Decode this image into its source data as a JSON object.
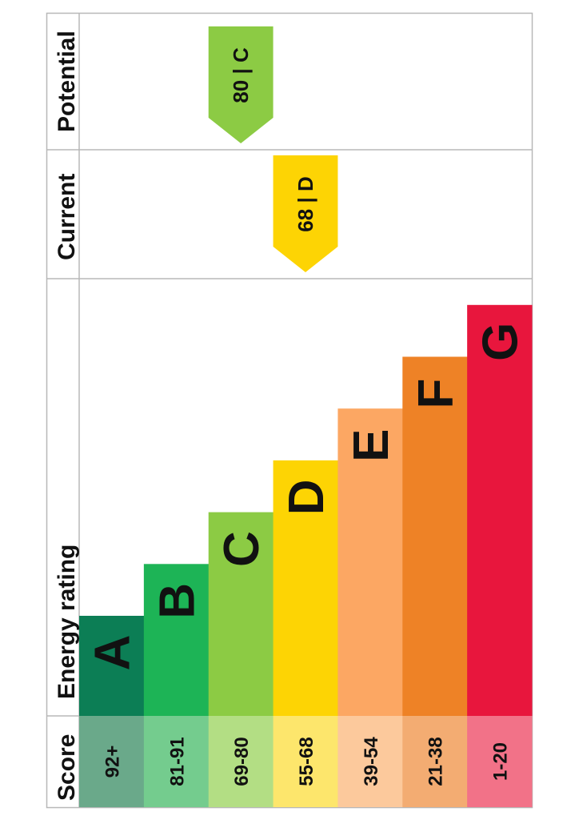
{
  "chart_data": {
    "type": "bar",
    "title": "",
    "headers": {
      "score": "Score",
      "energy_rating": "Energy rating",
      "current": "Current",
      "potential": "Potential"
    },
    "bands": [
      {
        "letter": "A",
        "score": "92+",
        "color": "#0c7e55",
        "light": "#6aa98a"
      },
      {
        "letter": "B",
        "score": "81-91",
        "color": "#1db456",
        "light": "#74cc8e"
      },
      {
        "letter": "C",
        "score": "69-80",
        "color": "#8ccb44",
        "light": "#b3de84"
      },
      {
        "letter": "D",
        "score": "55-68",
        "color": "#fdd404",
        "light": "#fde66c"
      },
      {
        "letter": "E",
        "score": "39-54",
        "color": "#fca763",
        "light": "#fcc99c"
      },
      {
        "letter": "F",
        "score": "21-38",
        "color": "#ee8226",
        "light": "#f3ac72"
      },
      {
        "letter": "G",
        "score": "1-20",
        "color": "#e8163d",
        "light": "#f27288"
      }
    ],
    "current": {
      "value": 68,
      "band": "D",
      "label": "68 | D",
      "color": "#fdd404"
    },
    "potential": {
      "value": 80,
      "band": "C",
      "label": "80 | C",
      "color": "#8ccb44"
    },
    "grid": true
  }
}
